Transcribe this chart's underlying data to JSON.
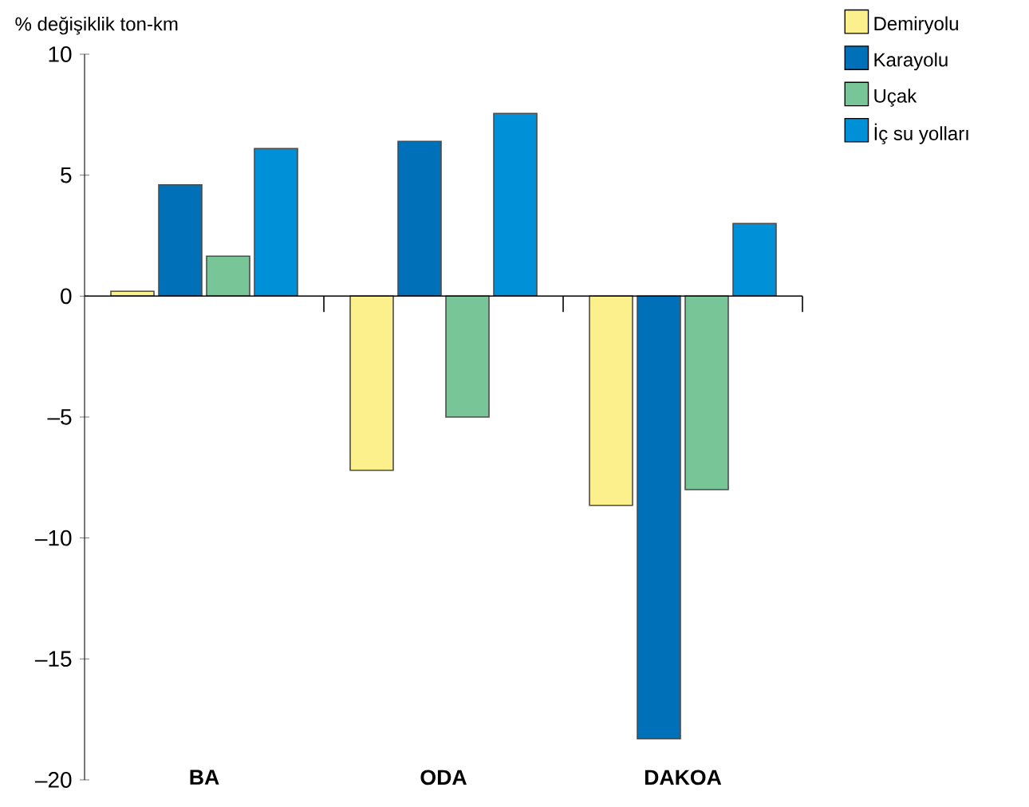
{
  "chart_data": {
    "type": "bar",
    "ylabel": "% değişiklik ton-km",
    "categories": [
      "BA",
      "ODA",
      "DAKOA"
    ],
    "series": [
      {
        "name": "Demiryolu",
        "color": "#fbf08c",
        "values": [
          0.2,
          -7.2,
          -8.65
        ]
      },
      {
        "name": "Karayolu",
        "color": "#0070b8",
        "values": [
          4.6,
          6.4,
          -18.3
        ]
      },
      {
        "name": "Uçak",
        "color": "#78c597",
        "values": [
          1.65,
          -5.0,
          -8.0
        ]
      },
      {
        "name": "İç su yolları",
        "color": "#0090d8",
        "values": [
          6.1,
          7.55,
          3.0
        ]
      }
    ],
    "ylim": [
      -20,
      10
    ],
    "yticks": [
      {
        "value": -20,
        "label": "–20"
      },
      {
        "value": -15,
        "label": "–15"
      },
      {
        "value": -10,
        "label": "–10"
      },
      {
        "value": -5,
        "label": "–5"
      },
      0,
      5,
      10
    ],
    "legend": "top right"
  }
}
